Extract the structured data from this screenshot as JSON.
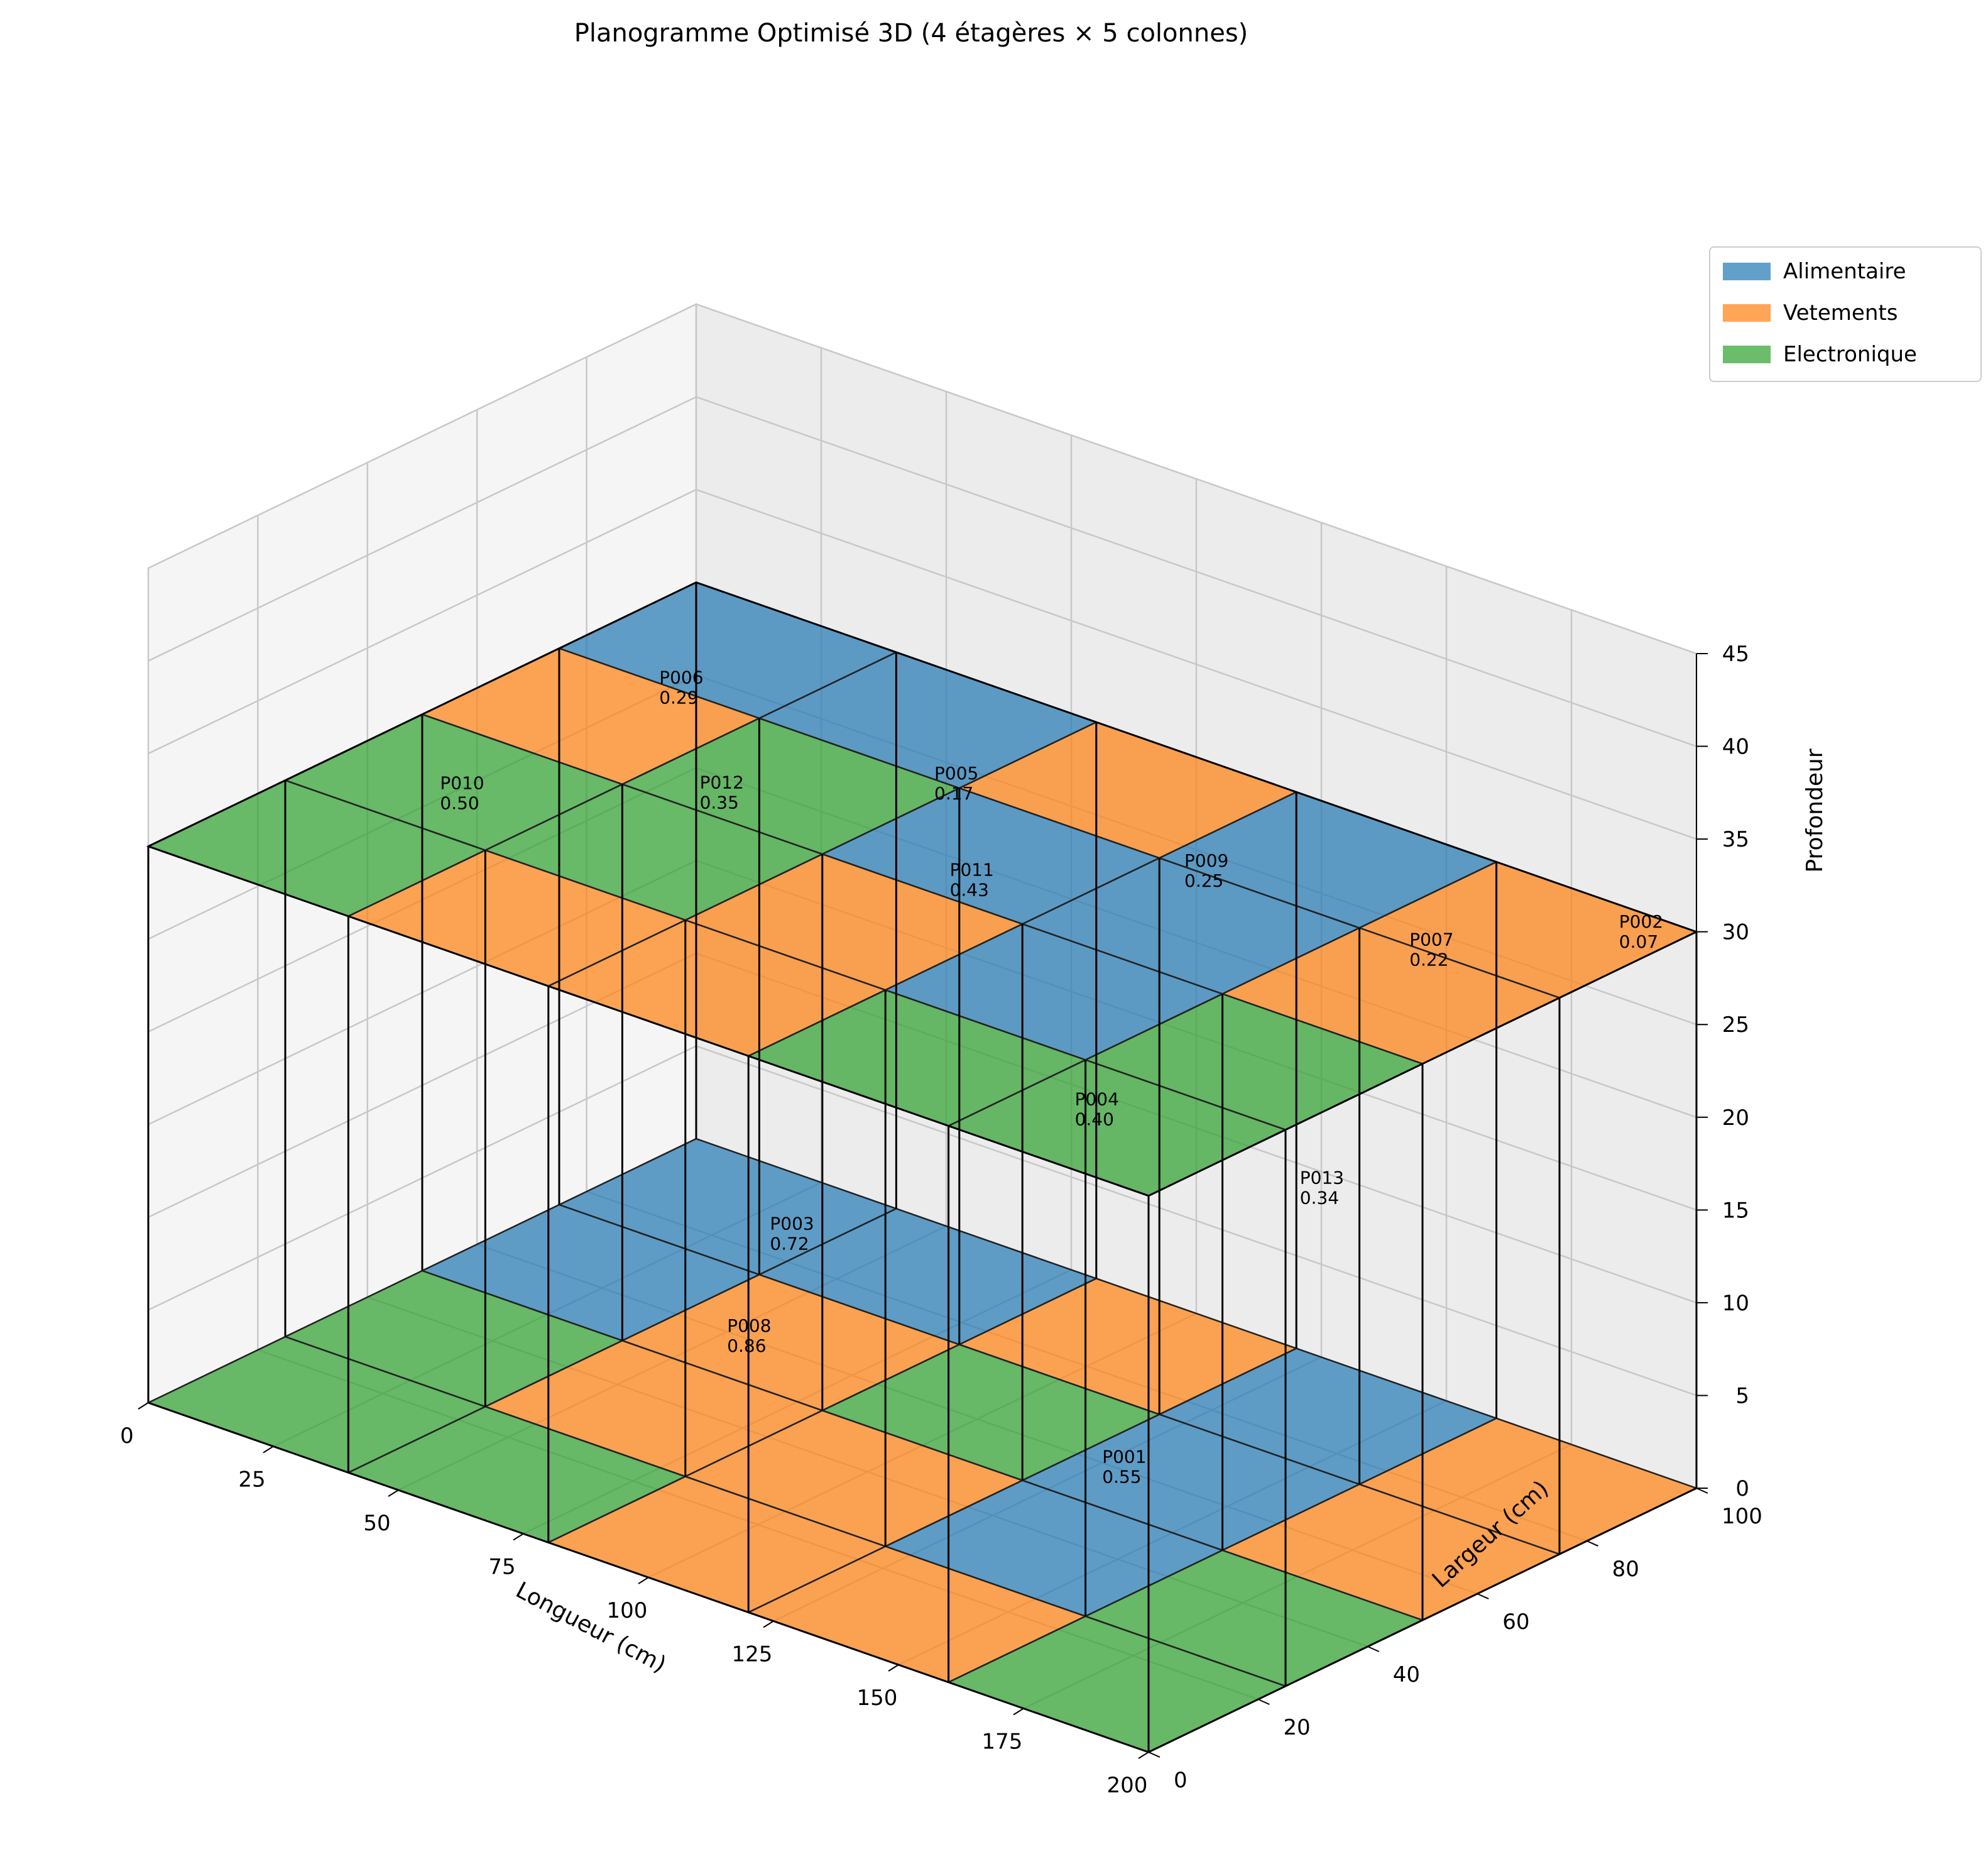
{
  "chart_data": {
    "type": "bar3d",
    "title": "Planogramme Optimisé 3D (4 étagères × 5 colonnes)",
    "xlabel": "Longueur (cm)",
    "ylabel": "Largeur (cm)",
    "zlabel": "Profondeur",
    "xlim": [
      0,
      200
    ],
    "ylim": [
      0,
      100
    ],
    "zlim": [
      0,
      45
    ],
    "xticks": [
      "0",
      "25",
      "50",
      "75",
      "100",
      "125",
      "150",
      "175",
      "200"
    ],
    "yticks": [
      "0",
      "20",
      "40",
      "60",
      "80",
      "100"
    ],
    "zticks": [
      "0",
      "5",
      "10",
      "15",
      "20",
      "25",
      "30",
      "35",
      "40",
      "45"
    ],
    "grid": true,
    "legend_position": "top-right",
    "categories": [
      {
        "name": "Alimentaire",
        "color": "#1f77b4"
      },
      {
        "name": "Vetements",
        "color": "#ff7f0e"
      },
      {
        "name": "Electronique",
        "color": "#2ca02c"
      }
    ],
    "shelves": [
      {
        "z": 0,
        "y_range": [
          0,
          25
        ],
        "cells": [
          "Electronique",
          "Electronique",
          "Vetements",
          "Vetements",
          "Electronique"
        ]
      },
      {
        "z": 0,
        "y_range": [
          25,
          50
        ],
        "cells": [
          "Electronique",
          "Vetements",
          "Vetements",
          "Alimentaire",
          "Electronique"
        ]
      },
      {
        "z": 0,
        "y_range": [
          50,
          75
        ],
        "cells": [
          "Alimentaire",
          "Vetements",
          "Electronique",
          "Alimentaire",
          "Vetements"
        ]
      },
      {
        "z": 0,
        "y_range": [
          75,
          100
        ],
        "cells": [
          "Alimentaire",
          "Alimentaire",
          "Vetements",
          "Alimentaire",
          "Vetements"
        ]
      },
      {
        "z": 30,
        "y_range": [
          0,
          25
        ],
        "cells": [
          "Electronique",
          "Vetements",
          "Vetements",
          "Electronique",
          "Electronique"
        ]
      },
      {
        "z": 30,
        "y_range": [
          25,
          50
        ],
        "cells": [
          "Electronique",
          "Electronique",
          "Vetements",
          "Alimentaire",
          "Electronique"
        ]
      },
      {
        "z": 30,
        "y_range": [
          50,
          75
        ],
        "cells": [
          "Vetements",
          "Electronique",
          "Alimentaire",
          "Alimentaire",
          "Vetements"
        ]
      },
      {
        "z": 30,
        "y_range": [
          75,
          100
        ],
        "cells": [
          "Alimentaire",
          "Alimentaire",
          "Vetements",
          "Alimentaire",
          "Vetements"
        ]
      }
    ],
    "products": [
      {
        "id": "P006",
        "value": "0.29",
        "x": 20,
        "y": 75,
        "z": 30
      },
      {
        "id": "P005",
        "value": "0.17",
        "x": 75,
        "y": 75,
        "z": 30
      },
      {
        "id": "P009",
        "value": "0.25",
        "x": 125,
        "y": 75,
        "z": 30
      },
      {
        "id": "P007",
        "value": "0.22",
        "x": 170,
        "y": 75,
        "z": 30
      },
      {
        "id": "P002",
        "value": "0.07",
        "x": 190,
        "y": 95,
        "z": 30
      },
      {
        "id": "P012",
        "value": "0.35",
        "x": 50,
        "y": 55,
        "z": 30
      },
      {
        "id": "P011",
        "value": "0.43",
        "x": 100,
        "y": 55,
        "z": 30
      },
      {
        "id": "P004",
        "value": "0.40",
        "x": 125,
        "y": 55,
        "z": 20
      },
      {
        "id": "P010",
        "value": "0.50",
        "x": 20,
        "y": 35,
        "z": 30
      },
      {
        "id": "P003",
        "value": "0.72",
        "x": 75,
        "y": 45,
        "z": 10
      },
      {
        "id": "P013",
        "value": "0.34",
        "x": 170,
        "y": 55,
        "z": 20
      },
      {
        "id": "P001",
        "value": "0.55",
        "x": 125,
        "y": 60,
        "z": 0
      },
      {
        "id": "P008",
        "value": "0.86",
        "x": 50,
        "y": 60,
        "z": 0
      }
    ]
  }
}
